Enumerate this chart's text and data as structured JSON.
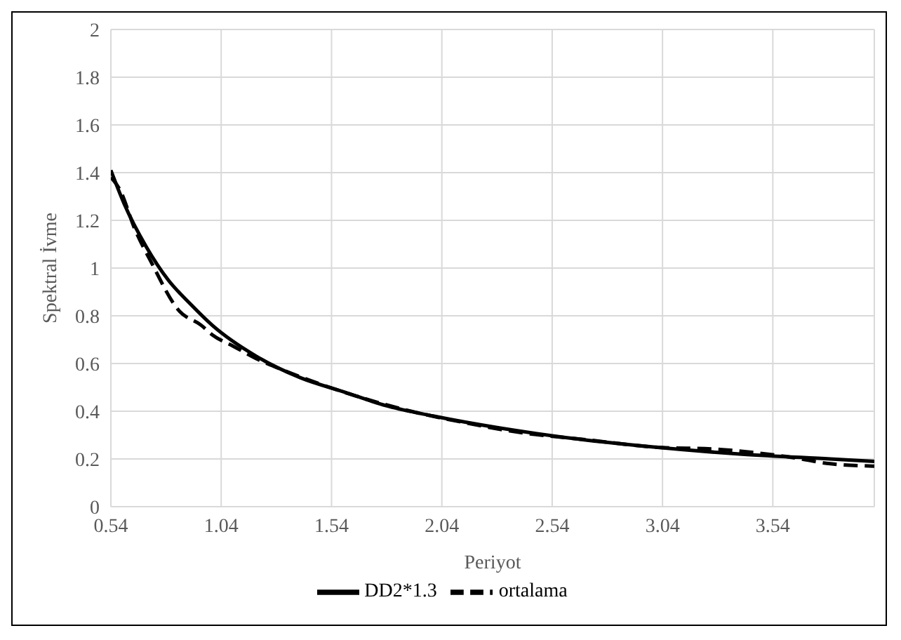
{
  "chart_data": {
    "type": "line",
    "xlabel": "Periyot",
    "ylabel": "Spektral İvme",
    "xlim": [
      0.54,
      4.0
    ],
    "xticks": [
      0.54,
      1.04,
      1.54,
      2.04,
      2.54,
      3.04,
      3.54
    ],
    "ylim": [
      0,
      2
    ],
    "yticks": [
      0,
      0.2,
      0.4,
      0.6,
      0.8,
      1,
      1.2,
      1.4,
      1.6,
      1.8,
      2
    ],
    "grid": true,
    "legend": "bottom",
    "marker": "none",
    "series": [
      {
        "name": "DD2*1.3",
        "color": "#000000",
        "line_style": "solid",
        "x": [
          0.54,
          0.6,
          0.7,
          0.8,
          0.9,
          1.0,
          1.2,
          1.4,
          1.6,
          1.8,
          2.0,
          2.3,
          2.6,
          3.0,
          3.4,
          3.8,
          4.0
        ],
        "values": [
          1.41,
          1.27,
          1.09,
          0.95,
          0.85,
          0.76,
          0.63,
          0.54,
          0.48,
          0.42,
          0.38,
          0.33,
          0.29,
          0.25,
          0.22,
          0.2,
          0.19
        ]
      },
      {
        "name": "ortalama",
        "color": "#000000",
        "line_style": "dashed",
        "x": [
          0.54,
          0.58,
          0.65,
          0.72,
          0.85,
          0.95,
          1.0,
          1.1,
          1.2,
          1.3,
          1.5,
          1.7,
          1.9,
          2.1,
          2.4,
          2.7,
          3.0,
          3.3,
          3.6,
          3.8,
          4.0
        ],
        "values": [
          1.38,
          1.33,
          1.16,
          1.03,
          0.82,
          0.76,
          0.72,
          0.67,
          0.62,
          0.58,
          0.51,
          0.45,
          0.4,
          0.36,
          0.31,
          0.28,
          0.25,
          0.24,
          0.21,
          0.18,
          0.17
        ]
      }
    ]
  }
}
